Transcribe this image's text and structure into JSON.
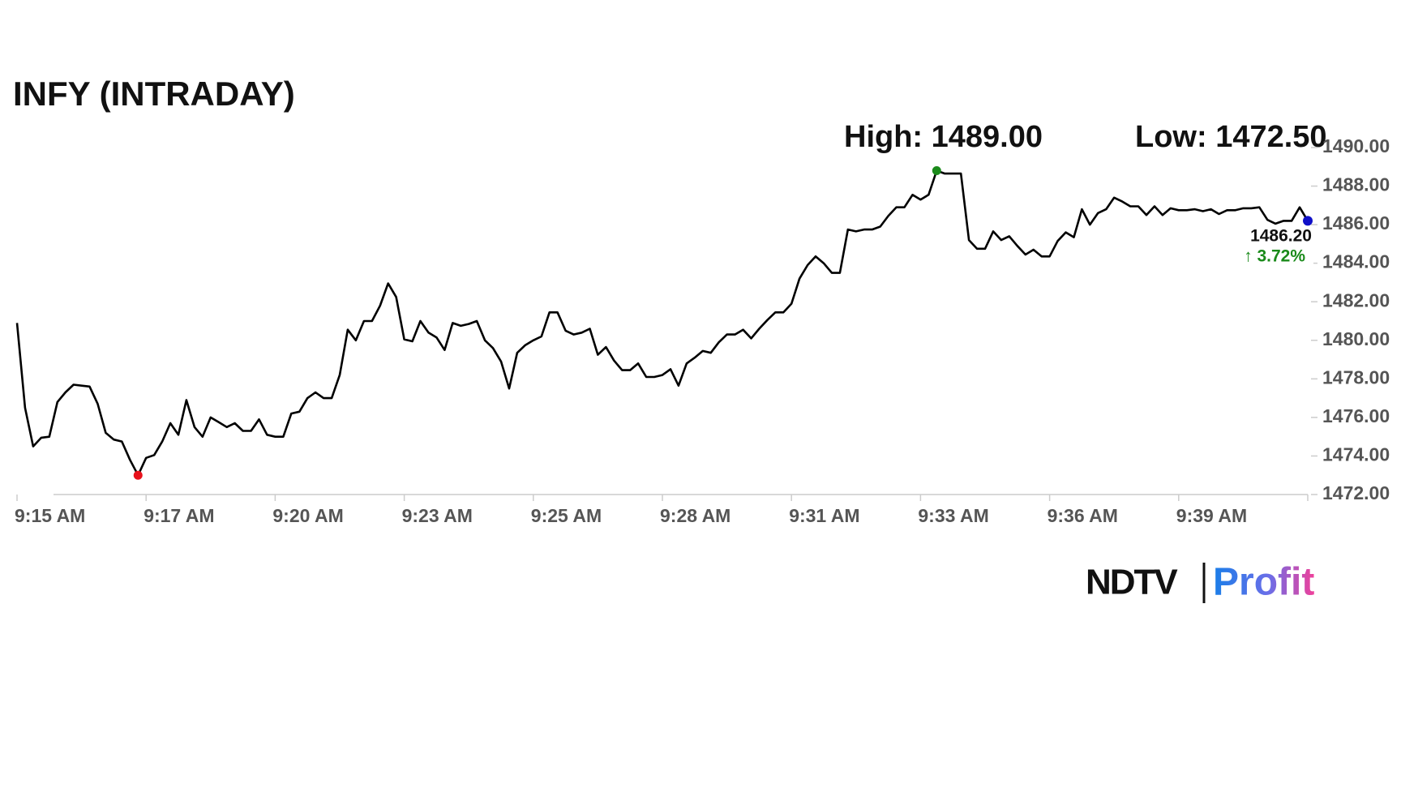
{
  "chart_data": {
    "type": "line",
    "title": "INFY (INTRADAY)",
    "high_label": "High: 1489.00",
    "low_label": "Low: 1472.50",
    "last_label": "1486.20",
    "change_label": "↑ 3.72%",
    "brand": [
      "NDTV",
      "Profit"
    ],
    "color": "#000000",
    "high_color": "#1a8a1a",
    "low_color": "#e8121c",
    "last_color": "#1010c8",
    "change_color": "#1a8a1a",
    "categories": [
      "9:15 AM",
      null,
      null,
      null,
      null,
      null,
      null,
      null,
      null,
      null,
      null,
      null,
      null,
      null,
      null,
      null,
      "9:17 AM",
      null,
      null,
      null,
      null,
      null,
      null,
      null,
      null,
      null,
      null,
      null,
      null,
      null,
      null,
      null,
      "9:20 AM",
      null,
      null,
      null,
      null,
      null,
      null,
      null,
      null,
      null,
      null,
      null,
      null,
      null,
      null,
      null,
      "9:23 AM",
      null,
      null,
      null,
      null,
      null,
      null,
      null,
      null,
      null,
      null,
      null,
      null,
      null,
      null,
      null,
      "9:25 AM",
      null,
      null,
      null,
      null,
      null,
      null,
      null,
      null,
      null,
      null,
      null,
      null,
      null,
      null,
      null,
      "9:28 AM",
      null,
      null,
      null,
      null,
      null,
      null,
      null,
      null,
      null,
      null,
      null,
      null,
      null,
      null,
      null,
      "9:31 AM",
      null,
      null,
      null,
      null,
      null,
      null,
      null,
      null,
      null,
      null,
      null,
      null,
      null,
      null,
      null,
      "9:33 AM",
      null,
      null,
      null,
      null,
      null,
      null,
      null,
      null,
      null,
      null,
      null,
      null,
      null,
      null,
      null,
      "9:36 AM",
      null,
      null,
      null,
      null,
      null,
      null,
      null,
      null,
      null,
      null,
      null,
      null,
      null,
      null,
      null,
      "9:39 AM",
      null,
      null,
      null,
      null,
      null,
      null,
      null,
      null,
      null,
      null,
      null,
      null,
      null,
      null,
      null,
      null
    ],
    "values": [
      1480.9,
      1476.5,
      1474.5,
      1474.95,
      1475.0,
      1476.8,
      1477.3,
      1477.7,
      1477.65,
      1477.6,
      1476.7,
      1475.2,
      1474.85,
      1474.75,
      1473.8,
      1473.0,
      1473.9,
      1474.05,
      1474.75,
      1475.7,
      1475.1,
      1476.9,
      1475.5,
      1475.0,
      1476.0,
      1475.75,
      1475.5,
      1475.7,
      1475.3,
      1475.3,
      1475.9,
      1475.1,
      1475.0,
      1475.0,
      1476.2,
      1476.3,
      1477.0,
      1477.3,
      1477.0,
      1477.0,
      1478.2,
      1480.55,
      1480.0,
      1481.0,
      1481.0,
      1481.8,
      1482.95,
      1482.25,
      1480.05,
      1479.95,
      1481.0,
      1480.4,
      1480.15,
      1479.5,
      1480.9,
      1480.75,
      1480.85,
      1481.0,
      1480.0,
      1479.6,
      1478.9,
      1477.5,
      1479.35,
      1479.75,
      1480.0,
      1480.2,
      1481.45,
      1481.45,
      1480.5,
      1480.3,
      1480.4,
      1480.6,
      1479.25,
      1479.65,
      1478.95,
      1478.45,
      1478.45,
      1478.8,
      1478.1,
      1478.1,
      1478.2,
      1478.5,
      1477.65,
      1478.8,
      1479.1,
      1479.45,
      1479.35,
      1479.9,
      1480.3,
      1480.3,
      1480.55,
      1480.1,
      1480.6,
      1481.05,
      1481.45,
      1481.45,
      1481.9,
      1483.2,
      1483.9,
      1484.35,
      1484.0,
      1483.5,
      1483.5,
      1485.75,
      1485.65,
      1485.75,
      1485.75,
      1485.9,
      1486.45,
      1486.9,
      1486.9,
      1487.55,
      1487.3,
      1487.55,
      1488.8,
      1488.65,
      1488.65,
      1488.65,
      1485.2,
      1484.75,
      1484.75,
      1485.65,
      1485.2,
      1485.4,
      1484.9,
      1484.45,
      1484.7,
      1484.35,
      1484.35,
      1485.15,
      1485.6,
      1485.35,
      1486.8,
      1486.0,
      1486.6,
      1486.8,
      1487.4,
      1487.2,
      1486.95,
      1486.95,
      1486.5,
      1486.95,
      1486.5,
      1486.85,
      1486.75,
      1486.75,
      1486.8,
      1486.7,
      1486.8,
      1486.55,
      1486.75,
      1486.75,
      1486.85,
      1486.85,
      1486.9,
      1486.25,
      1486.05,
      1486.2,
      1486.2,
      1486.9,
      1486.2
    ],
    "ylim": [
      1472,
      1490
    ],
    "yticks": [
      {
        "value": 1472,
        "label": "1472.00"
      },
      {
        "value": 1474,
        "label": "1474.00"
      },
      {
        "value": 1476,
        "label": "1476.00"
      },
      {
        "value": 1478,
        "label": "1478.00"
      },
      {
        "value": 1480,
        "label": "1480.00"
      },
      {
        "value": 1482,
        "label": "1482.00"
      },
      {
        "value": 1484,
        "label": "1484.00"
      },
      {
        "value": 1486,
        "label": "1486.00"
      },
      {
        "value": 1488,
        "label": "1488.00"
      },
      {
        "value": 1490,
        "label": "1490.00"
      }
    ]
  }
}
